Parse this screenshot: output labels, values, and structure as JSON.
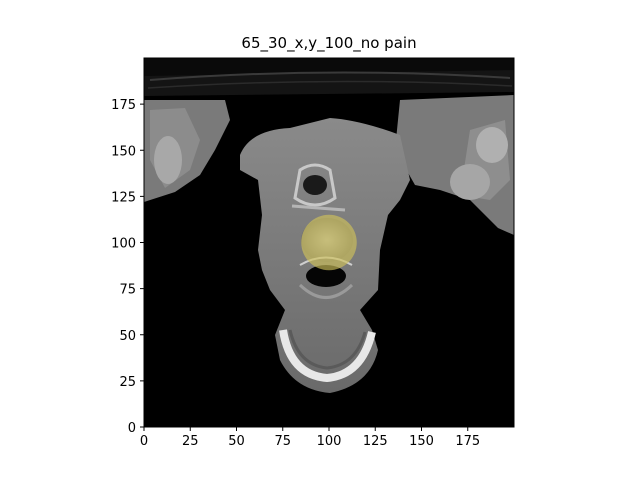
{
  "figure": {
    "title": "65_30_x,y_100_no pain",
    "image_kind": "grayscale axial CT slice of neck with semi-transparent yellow circular region overlay",
    "overlay_color": "#cfc25a",
    "axes": {
      "xlim": [
        0,
        199
      ],
      "ylim": [
        0,
        199
      ],
      "x_ticks": [
        "0",
        "25",
        "50",
        "75",
        "100",
        "125",
        "150",
        "175"
      ],
      "y_ticks": [
        "0",
        "25",
        "50",
        "75",
        "100",
        "125",
        "150",
        "175"
      ],
      "origin": "lower"
    },
    "overlay_region": {
      "center_x": 100,
      "center_y": 100,
      "radius": 15
    }
  }
}
